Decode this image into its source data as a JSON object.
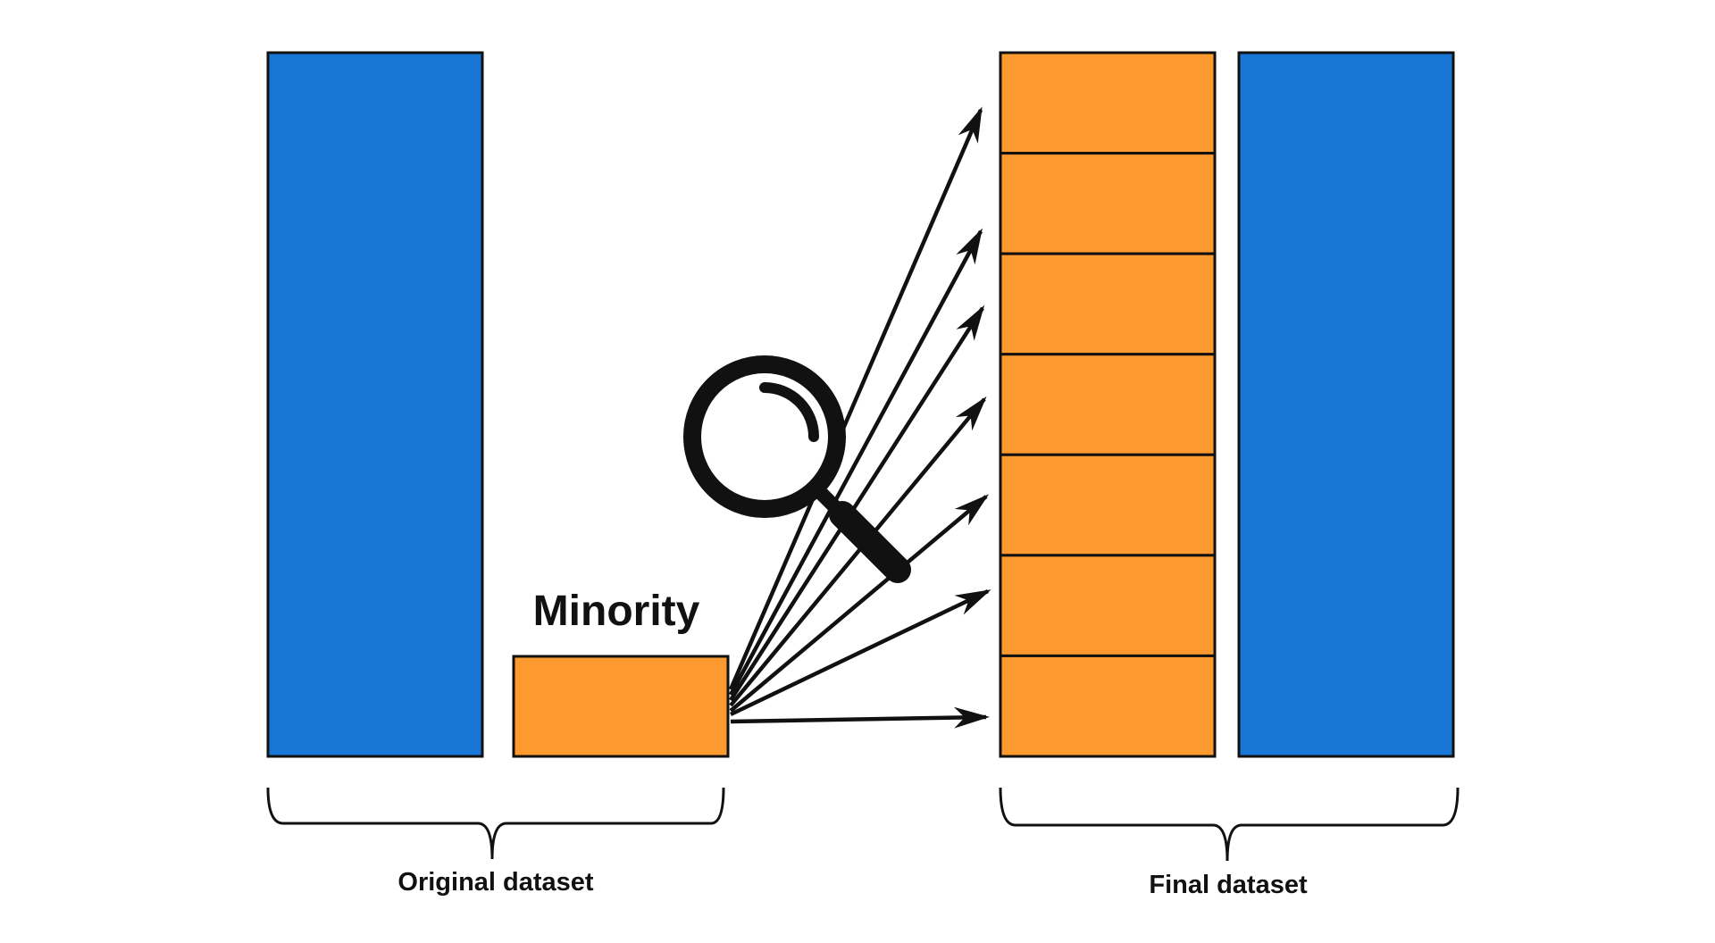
{
  "colors": {
    "majority": "#1776D6",
    "minority": "#FC9A2F",
    "stroke": "#111111"
  },
  "labels": {
    "minority": "Minority",
    "original_dataset": "Original dataset",
    "final_dataset": "Final dataset"
  },
  "icons": {
    "magnifier": "magnifying-glass-icon"
  },
  "original_dataset": {
    "classes": [
      "majority",
      "minority"
    ]
  },
  "final_dataset": {
    "classes": [
      "minority-oversampled",
      "majority"
    ],
    "minority_block_count": 7
  }
}
